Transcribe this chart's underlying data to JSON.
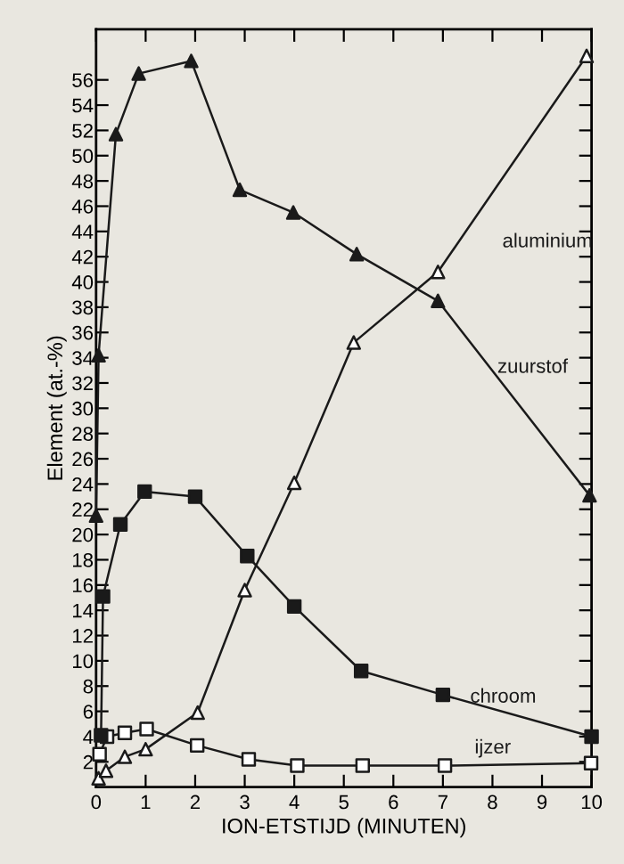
{
  "chart_data": {
    "type": "line",
    "xlabel": "ION-ETSTIJD (MINUTEN)",
    "ylabel": "Element (at.-%)",
    "xlim": [
      0,
      10
    ],
    "ylim": [
      0,
      60
    ],
    "xticks": [
      0,
      1,
      2,
      3,
      4,
      5,
      6,
      7,
      8,
      9,
      10
    ],
    "yticks": [
      2,
      4,
      6,
      8,
      10,
      12,
      14,
      16,
      18,
      20,
      22,
      24,
      26,
      28,
      30,
      32,
      34,
      36,
      38,
      40,
      42,
      44,
      46,
      48,
      50,
      52,
      54,
      56
    ],
    "grid": false,
    "legend": false,
    "line_style": "solid",
    "series": [
      {
        "name": "aluminium",
        "color": "#1a1a1a",
        "marker": "triangle",
        "colors": [
          "#ffffff",
          "#ffffff",
          "#ffffff",
          "#ffffff",
          "#ffffff",
          "#ffffff",
          "#ffffff",
          "#ffffff",
          "#ffffff",
          "#ffffff"
        ],
        "x": [
          0.05,
          0.2,
          0.58,
          1.0,
          2.05,
          3.0,
          4.0,
          5.2,
          6.9,
          9.9
        ],
        "values": [
          0.7,
          1.3,
          2.4,
          3.0,
          5.9,
          15.6,
          24.1,
          35.2,
          40.8,
          57.9
        ]
      },
      {
        "name": "zuurstof",
        "color": "#1a1a1a",
        "marker": "triangle",
        "colors": [
          "#1a1a1a",
          "#1a1a1a",
          "#1a1a1a",
          "#1a1a1a",
          "#1a1a1a",
          "#1a1a1a",
          "#1a1a1a",
          "#1a1a1a",
          "#1a1a1a",
          "#1a1a1a"
        ],
        "x": [
          0.0,
          0.05,
          0.4,
          0.86,
          1.92,
          2.9,
          3.98,
          5.26,
          6.9,
          9.96
        ],
        "values": [
          21.5,
          34.2,
          51.7,
          56.5,
          57.5,
          47.3,
          45.5,
          42.2,
          38.5,
          23.1
        ]
      },
      {
        "name": "chroom",
        "color": "#1a1a1a",
        "marker": "square",
        "colors": [
          "#1a1a1a",
          "#1a1a1a",
          "#1a1a1a",
          "#1a1a1a",
          "#1a1a1a",
          "#1a1a1a",
          "#1a1a1a",
          "#1a1a1a",
          "#1a1a1a",
          "#1a1a1a"
        ],
        "x": [
          0.1,
          0.14,
          0.49,
          0.98,
          2.0,
          3.05,
          4.0,
          5.35,
          7.0,
          10.0
        ],
        "values": [
          4.1,
          15.1,
          20.8,
          23.4,
          23.0,
          18.3,
          14.3,
          9.2,
          7.3,
          4.0
        ]
      },
      {
        "name": "ijzer",
        "color": "#1a1a1a",
        "marker": "square",
        "colors": [
          "#ffffff",
          "#ffffff",
          "#ffffff",
          "#ffffff",
          "#ffffff",
          "#ffffff",
          "#ffffff",
          "#ffffff",
          "#ffffff",
          "#ffffff"
        ],
        "x": [
          0.07,
          0.22,
          0.58,
          1.02,
          2.04,
          3.08,
          4.06,
          5.38,
          7.04,
          9.99
        ],
        "values": [
          2.6,
          4.0,
          4.3,
          4.6,
          3.3,
          2.2,
          1.7,
          1.7,
          1.7,
          1.9
        ]
      }
    ]
  }
}
